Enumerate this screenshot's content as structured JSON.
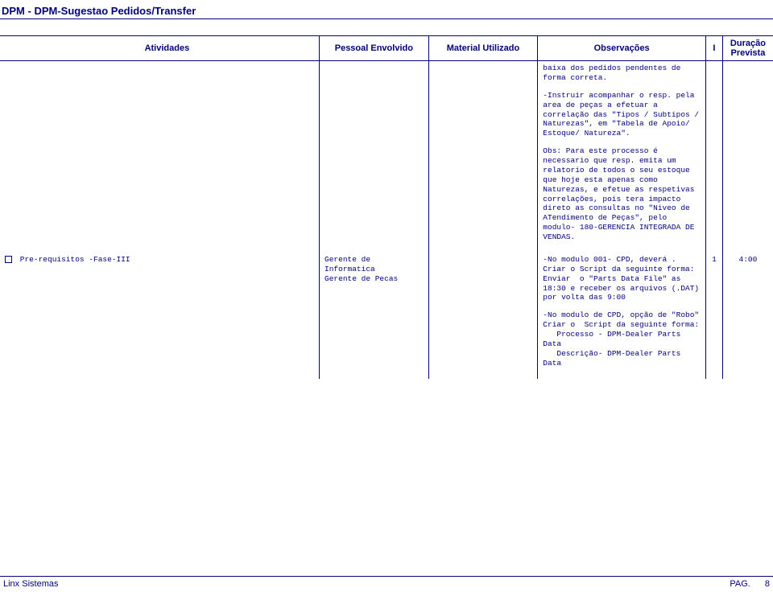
{
  "header": {
    "title": "DPM - DPM-Sugestao Pedidos/Transfer"
  },
  "columns": {
    "atividades": "Atividades",
    "pessoal": "Pessoal Envolvido",
    "material": "Material Utilizado",
    "observacoes": "Observações",
    "i": "I",
    "duracao": "Duração Prevista"
  },
  "row_prev": {
    "obs1": "baixa dos pedidos pendentes de forma correta.",
    "obs2": "-Instruir acompanhar o resp. pela area de peças a efetuar a correlação das \"Tipos / Subtipos / Naturezas\", em \"Tabela de Apoio/ Estoque/ Natureza\".",
    "obs3": "Obs: Para este processo é necessario que resp. emita um relatorio de todos o seu estoque que hoje esta apenas como Naturezas, e efetue as respetivas correlações, pois tera impacto direto as consultas no \"Niveo de ATendimento de Peças\", pelo modulo- 180-GERENCIA INTEGRADA DE VENDAS."
  },
  "row2": {
    "atividade": "Pre-requisitos -Fase-III",
    "pessoal": "Gerente de Informatica\nGerente de Pecas",
    "obs1": "-No modulo 001- CPD, deverá . Criar o Script da seguinte forma:\nEnviar  o \"Parts Data File\" as 18:30 e receber os arquivos (.DAT) por volta das 9:00",
    "obs2": "-No modulo de CPD, opção de \"Robo\" Criar o  Script da seguinte forma:\n   Processo - DPM-Dealer Parts Data\n   Descrição- DPM-Dealer Parts Data",
    "i": "1",
    "duracao": "4:00"
  },
  "footer": {
    "left": "Linx Sistemas",
    "pag_label": "PAG.",
    "pag_num": "8"
  },
  "colors": {
    "primary": "#00007a",
    "background": "#ffffff"
  }
}
